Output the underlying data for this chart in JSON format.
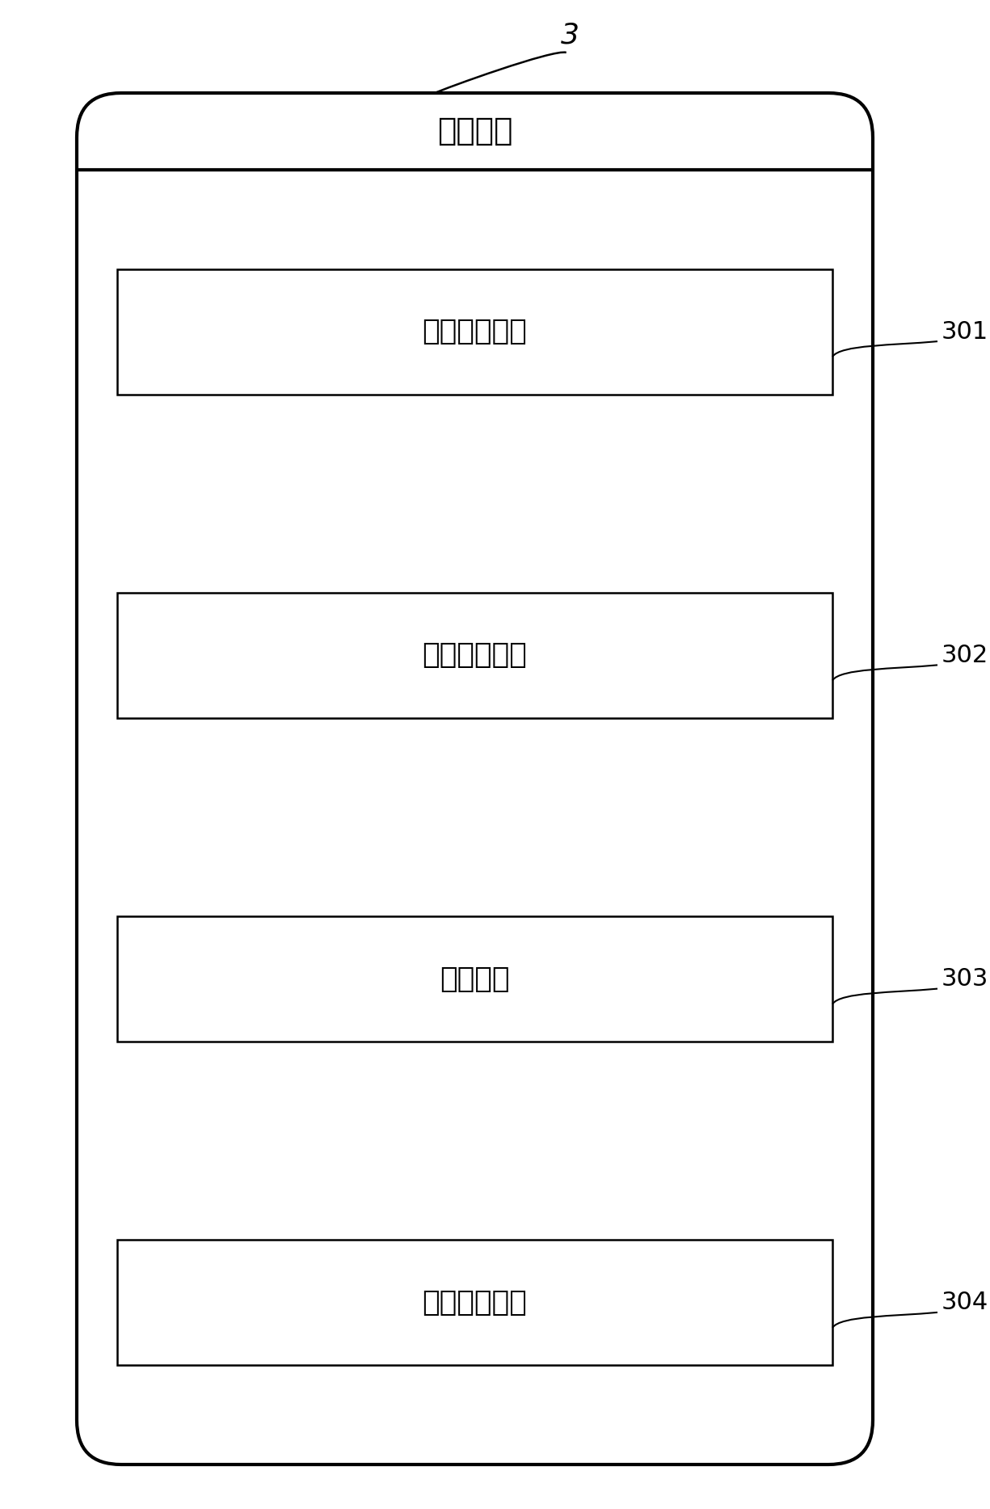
{
  "title": "计算装置",
  "label_3": "3",
  "modules": [
    {
      "label": "温度预订模块",
      "tag": "301"
    },
    {
      "label": "图像接收模块",
      "tag": "302"
    },
    {
      "label": "匹配模块",
      "tag": "303"
    },
    {
      "label": "温度计算模块",
      "tag": "304"
    }
  ],
  "background_color": "#ffffff",
  "outer_box_color": "#000000",
  "module_box_color": "#000000",
  "text_color": "#000000"
}
